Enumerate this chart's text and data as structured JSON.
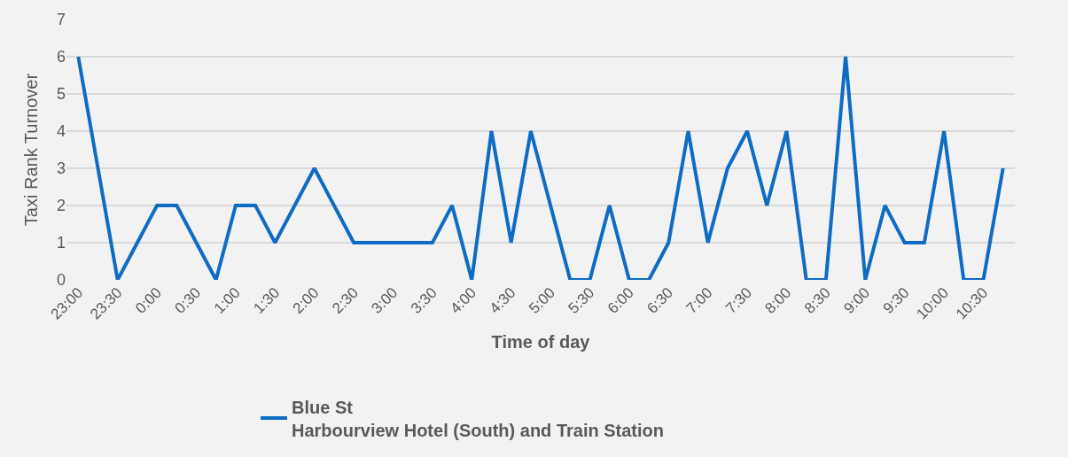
{
  "chart_data": {
    "type": "line",
    "xlabel": "Time of day",
    "ylabel": "Taxi Rank Turnover",
    "categories": [
      "23:00",
      null,
      "23:30",
      null,
      "0:00",
      null,
      "0:30",
      null,
      "1:00",
      null,
      "1:30",
      null,
      "2:00",
      null,
      "2:30",
      null,
      "3:00",
      null,
      "3:30",
      null,
      "4:00",
      null,
      "4:30",
      null,
      "5:00",
      null,
      "5:30",
      null,
      "6:00",
      null,
      "6:30",
      null,
      "7:00",
      null,
      "7:30",
      null,
      "8:00",
      null,
      "8:30",
      null,
      "9:00",
      null,
      "9:30",
      null,
      "10:00",
      null,
      "10:30",
      null
    ],
    "series": [
      {
        "name": "Blue St\nHarbourview Hotel (South) and Train Station",
        "color": "#0f6cc4",
        "values": [
          6,
          3,
          0,
          1,
          2,
          2,
          1,
          0,
          2,
          2,
          1,
          2,
          3,
          2,
          1,
          1,
          1,
          1,
          1,
          2,
          0,
          4,
          1,
          4,
          2,
          0,
          0,
          2,
          0,
          0,
          1,
          4,
          1,
          3,
          4,
          2,
          4,
          0,
          0,
          6,
          0,
          2,
          1,
          1,
          4,
          0,
          0,
          3
        ]
      }
    ],
    "ylim": [
      0,
      7
    ],
    "yticks": [
      0,
      1,
      2,
      3,
      4,
      5,
      6,
      7
    ],
    "grid": "y",
    "legend": "bottom",
    "marker": "none",
    "line_style": "solid"
  }
}
